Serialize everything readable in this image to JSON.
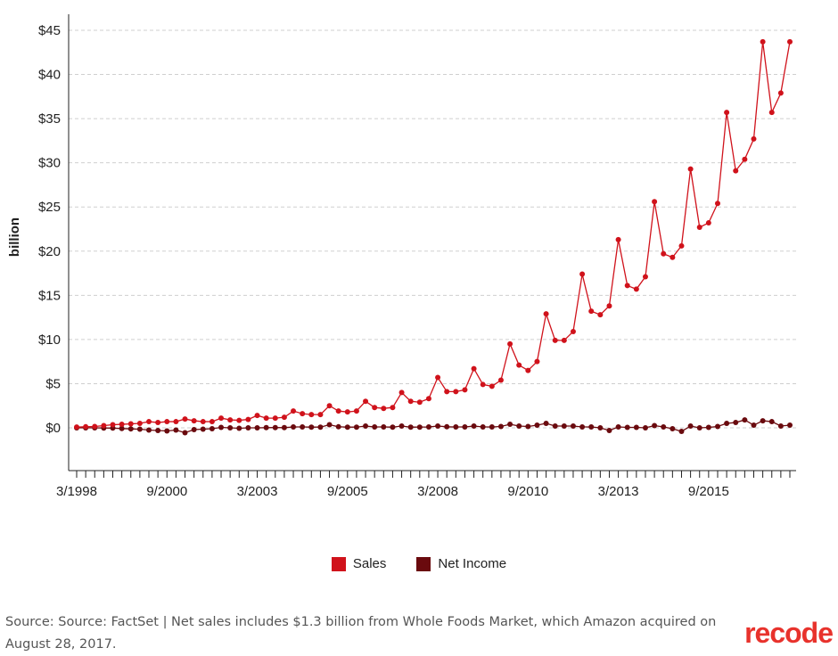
{
  "chart_data": {
    "type": "line",
    "ylabel": "billion",
    "ylim": [
      -5,
      45
    ],
    "y_ticks": [
      {
        "value": 45,
        "label": "$45"
      },
      {
        "value": 40,
        "label": "$40"
      },
      {
        "value": 35,
        "label": "$35"
      },
      {
        "value": 30,
        "label": "$30"
      },
      {
        "value": 25,
        "label": "$25"
      },
      {
        "value": 20,
        "label": "$20"
      },
      {
        "value": 15,
        "label": "$15"
      },
      {
        "value": 10,
        "label": "$10"
      },
      {
        "value": 5,
        "label": "$5"
      },
      {
        "value": 0,
        "label": "$0"
      }
    ],
    "x_tick_labels": [
      {
        "label": "3/1998",
        "index": 0
      },
      {
        "label": "9/2000",
        "index": 10
      },
      {
        "label": "3/2003",
        "index": 20
      },
      {
        "label": "9/2005",
        "index": 30
      },
      {
        "label": "3/2008",
        "index": 40
      },
      {
        "label": "9/2010",
        "index": 50
      },
      {
        "label": "3/2013",
        "index": 60
      },
      {
        "label": "9/2015",
        "index": 70
      }
    ],
    "grid": true,
    "legend_position": "bottom",
    "series": [
      {
        "name": "Sales",
        "color": "#d0121b",
        "values": [
          0.09,
          0.12,
          0.15,
          0.25,
          0.35,
          0.4,
          0.45,
          0.5,
          0.7,
          0.6,
          0.7,
          0.7,
          1.0,
          0.8,
          0.7,
          0.7,
          1.1,
          0.9,
          0.85,
          0.95,
          1.4,
          1.1,
          1.1,
          1.2,
          1.9,
          1.6,
          1.5,
          1.5,
          2.5,
          1.9,
          1.8,
          1.9,
          3.0,
          2.3,
          2.2,
          2.3,
          4.0,
          3.0,
          2.9,
          3.3,
          5.7,
          4.1,
          4.1,
          4.3,
          6.7,
          4.9,
          4.7,
          5.4,
          9.5,
          7.1,
          6.5,
          7.5,
          12.9,
          9.9,
          9.9,
          10.9,
          17.4,
          13.2,
          12.8,
          13.8,
          21.3,
          16.1,
          15.7,
          17.1,
          25.6,
          19.7,
          19.3,
          20.6,
          29.3,
          22.7,
          23.2,
          25.4,
          35.7,
          29.1,
          30.4,
          32.7,
          43.7,
          35.7,
          37.9,
          43.7
        ]
      },
      {
        "name": "Net Income",
        "color": "#6a0a0e",
        "values": [
          0.0,
          0.0,
          0.0,
          -0.02,
          -0.03,
          -0.08,
          -0.12,
          -0.15,
          -0.25,
          -0.3,
          -0.35,
          -0.25,
          -0.55,
          -0.2,
          -0.15,
          -0.1,
          0.05,
          0.0,
          -0.05,
          0.0,
          0.0,
          0.02,
          0.03,
          0.02,
          0.1,
          0.1,
          0.08,
          0.08,
          0.35,
          0.12,
          0.08,
          0.08,
          0.2,
          0.1,
          0.1,
          0.08,
          0.2,
          0.08,
          0.08,
          0.1,
          0.2,
          0.12,
          0.1,
          0.1,
          0.2,
          0.1,
          0.1,
          0.15,
          0.4,
          0.2,
          0.15,
          0.3,
          0.5,
          0.2,
          0.2,
          0.2,
          0.1,
          0.1,
          0.0,
          -0.3,
          0.1,
          0.05,
          0.05,
          0.0,
          0.25,
          0.1,
          -0.1,
          -0.4,
          0.2,
          0.0,
          0.05,
          0.15,
          0.5,
          0.6,
          0.9,
          0.3,
          0.8,
          0.7,
          0.2,
          0.3
        ]
      }
    ]
  },
  "legend": {
    "items": [
      {
        "label": "Sales",
        "color": "#d0121b"
      },
      {
        "label": "Net Income",
        "color": "#6a0a0e"
      }
    ]
  },
  "footer": {
    "source_label": "Source:",
    "source_text": "Source: FactSet | Net sales includes $1.3 billion from Whole Foods Market, which Amazon acquired on August 28, 2017.",
    "logo": "recode"
  }
}
